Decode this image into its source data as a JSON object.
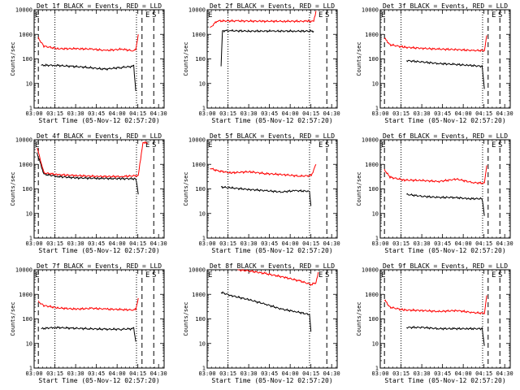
{
  "figure": {
    "xlabel": "Start Time (05-Nov-12 02:57:20)",
    "ylabel": "Counts/sec",
    "x_tick_labels": [
      "03:00",
      "03:15",
      "03:30",
      "03:45",
      "04:00",
      "04:15",
      "04:30"
    ],
    "y_tick_labels": [
      "1",
      "10",
      "100",
      "1000",
      "10000"
    ],
    "segment_labels": [
      "E",
      "S"
    ],
    "colors": {
      "events": "#000000",
      "lld": "#ff0000",
      "axes": "#000000"
    }
  },
  "chart_data": [
    {
      "type": "line",
      "title": "Det 1f BLACK = Events, RED = LLD",
      "xlim": [
        177,
        5820
      ],
      "ylim": [
        1,
        10000
      ],
      "yscale": "log",
      "markers": {
        "dashed": [
          360,
          4860,
          5370
        ],
        "dotted": [
          1080,
          4620
        ]
      },
      "series": [
        {
          "name": "Events",
          "x": [
            480,
            1080,
            1800,
            2520,
            3240,
            3960,
            4500,
            4590
          ],
          "y": [
            55,
            55,
            50,
            45,
            38,
            45,
            50,
            5
          ]
        },
        {
          "name": "LLD",
          "x": [
            360,
            600,
            1200,
            2000,
            2700,
            3300,
            4000,
            4500,
            4590,
            4700
          ],
          "y": [
            700,
            330,
            260,
            260,
            250,
            220,
            250,
            210,
            250,
            1000
          ]
        }
      ]
    },
    {
      "type": "line",
      "title": "Det 2f BLACK = Events, RED = LLD",
      "xlim": [
        177,
        5820
      ],
      "ylim": [
        1,
        10000
      ],
      "yscale": "log",
      "markers": {
        "dashed": [
          5370
        ],
        "dotted": [
          1080,
          4620
        ]
      },
      "series": [
        {
          "name": "Events",
          "x": [
            780,
            840,
            1200,
            2000,
            3000,
            4000,
            4800
          ],
          "y": [
            50,
            1400,
            1400,
            1350,
            1350,
            1350,
            1350
          ]
        },
        {
          "name": "LLD",
          "x": [
            300,
            600,
            1500,
            2500,
            3500,
            4500,
            4800,
            4900
          ],
          "y": [
            1800,
            3500,
            3500,
            3400,
            3400,
            3400,
            3400,
            9000
          ]
        }
      ]
    },
    {
      "type": "line",
      "title": "Det 3f BLACK = Events, RED = LLD",
      "xlim": [
        177,
        5820
      ],
      "ylim": [
        1,
        10000
      ],
      "yscale": "log",
      "markers": {
        "dashed": [
          360,
          4860,
          5370
        ],
        "dotted": [
          1080,
          4620
        ]
      },
      "series": [
        {
          "name": "Events",
          "x": [
            1320,
            2000,
            2700,
            3400,
            4000,
            4600,
            4700
          ],
          "y": [
            85,
            75,
            65,
            60,
            55,
            50,
            6
          ]
        },
        {
          "name": "LLD",
          "x": [
            360,
            600,
            1200,
            2000,
            2700,
            3500,
            4200,
            4700,
            4800
          ],
          "y": [
            700,
            380,
            300,
            270,
            250,
            240,
            220,
            220,
            900
          ]
        }
      ]
    },
    {
      "type": "line",
      "title": "Det 4f BLACK = Events, RED = LLD",
      "xlim": [
        177,
        5820
      ],
      "ylim": [
        1,
        10000
      ],
      "yscale": "log",
      "markers": {
        "dashed": [
          360,
          5370
        ],
        "dotted": [
          1080,
          4620
        ]
      },
      "series": [
        {
          "name": "Events",
          "x": [
            300,
            600,
            1200,
            2000,
            3000,
            4000,
            4600,
            4700
          ],
          "y": [
            3000,
            400,
            320,
            280,
            270,
            260,
            260,
            60
          ]
        },
        {
          "name": "LLD",
          "x": [
            300,
            600,
            1200,
            2000,
            3000,
            4000,
            4700,
            4900,
            5100
          ],
          "y": [
            5000,
            450,
            380,
            350,
            320,
            320,
            350,
            8000,
            7000
          ]
        }
      ]
    },
    {
      "type": "line",
      "title": "Det 5f BLACK = Events, RED = LLD",
      "xlim": [
        177,
        5820
      ],
      "ylim": [
        1,
        10000
      ],
      "yscale": "log",
      "markers": {
        "dashed": [
          5370
        ],
        "dotted": [
          1080,
          4620
        ]
      },
      "series": [
        {
          "name": "Events",
          "x": [
            780,
            1200,
            2000,
            2700,
            3400,
            4000,
            4620,
            4680
          ],
          "y": [
            120,
            110,
            95,
            85,
            75,
            85,
            80,
            20
          ]
        },
        {
          "name": "LLD",
          "x": [
            300,
            600,
            1200,
            2000,
            2700,
            3500,
            4200,
            4700,
            4900
          ],
          "y": [
            700,
            550,
            450,
            500,
            420,
            380,
            330,
            350,
            1000
          ]
        }
      ]
    },
    {
      "type": "line",
      "title": "Det 6f BLACK = Events, RED = LLD",
      "xlim": [
        177,
        5820
      ],
      "ylim": [
        1,
        10000
      ],
      "yscale": "log",
      "markers": {
        "dashed": [
          360,
          4860,
          5370
        ],
        "dotted": [
          1080,
          4620
        ]
      },
      "series": [
        {
          "name": "Events",
          "x": [
            1320,
            2000,
            2700,
            3400,
            4000,
            4600,
            4700
          ],
          "y": [
            60,
            50,
            45,
            45,
            40,
            40,
            8
          ]
        },
        {
          "name": "LLD",
          "x": [
            360,
            600,
            1200,
            2000,
            2700,
            3500,
            4200,
            4700,
            4800
          ],
          "y": [
            600,
            300,
            230,
            220,
            200,
            250,
            180,
            170,
            900
          ]
        }
      ]
    },
    {
      "type": "line",
      "title": "Det 7f BLACK = Events, RED = LLD",
      "xlim": [
        177,
        5820
      ],
      "ylim": [
        1,
        10000
      ],
      "yscale": "log",
      "markers": {
        "dashed": [
          360,
          4860,
          5370
        ],
        "dotted": [
          1080,
          4620
        ]
      },
      "series": [
        {
          "name": "Events",
          "x": [
            480,
            1080,
            1800,
            2520,
            3240,
            3960,
            4500,
            4590
          ],
          "y": [
            40,
            45,
            42,
            40,
            38,
            38,
            40,
            12
          ]
        },
        {
          "name": "LLD",
          "x": [
            360,
            600,
            1200,
            2000,
            2700,
            3300,
            4000,
            4500,
            4590,
            4700
          ],
          "y": [
            500,
            350,
            280,
            250,
            270,
            250,
            240,
            230,
            250,
            700
          ]
        }
      ]
    },
    {
      "type": "line",
      "title": "Det 8f BLACK = Events, RED = LLD",
      "xlim": [
        177,
        5820
      ],
      "ylim": [
        1,
        10000
      ],
      "yscale": "log",
      "markers": {
        "dashed": [
          5370
        ],
        "dotted": [
          1080,
          4620
        ]
      },
      "series": [
        {
          "name": "Events",
          "x": [
            780,
            1200,
            2000,
            2700,
            3400,
            4000,
            4620,
            4680
          ],
          "y": [
            1200,
            900,
            600,
            400,
            250,
            200,
            150,
            30
          ]
        },
        {
          "name": "LLD",
          "x": [
            1500,
            2000,
            2700,
            3500,
            4200,
            4700,
            4900,
            5000
          ],
          "y": [
            10000,
            9000,
            7000,
            5000,
            3500,
            2500,
            3000,
            8000
          ]
        }
      ]
    },
    {
      "type": "line",
      "title": "Det 9f BLACK = Events, RED = LLD",
      "xlim": [
        177,
        5820
      ],
      "ylim": [
        1,
        10000
      ],
      "yscale": "log",
      "markers": {
        "dashed": [
          360,
          4860,
          5370
        ],
        "dotted": [
          1080,
          4620
        ]
      },
      "series": [
        {
          "name": "Events",
          "x": [
            1320,
            2000,
            2700,
            3400,
            4000,
            4600,
            4700
          ],
          "y": [
            45,
            45,
            40,
            40,
            40,
            40,
            8
          ]
        },
        {
          "name": "LLD",
          "x": [
            360,
            600,
            1200,
            2000,
            2700,
            3500,
            4200,
            4700,
            4800
          ],
          "y": [
            600,
            300,
            230,
            220,
            200,
            220,
            180,
            170,
            900
          ]
        }
      ]
    }
  ]
}
